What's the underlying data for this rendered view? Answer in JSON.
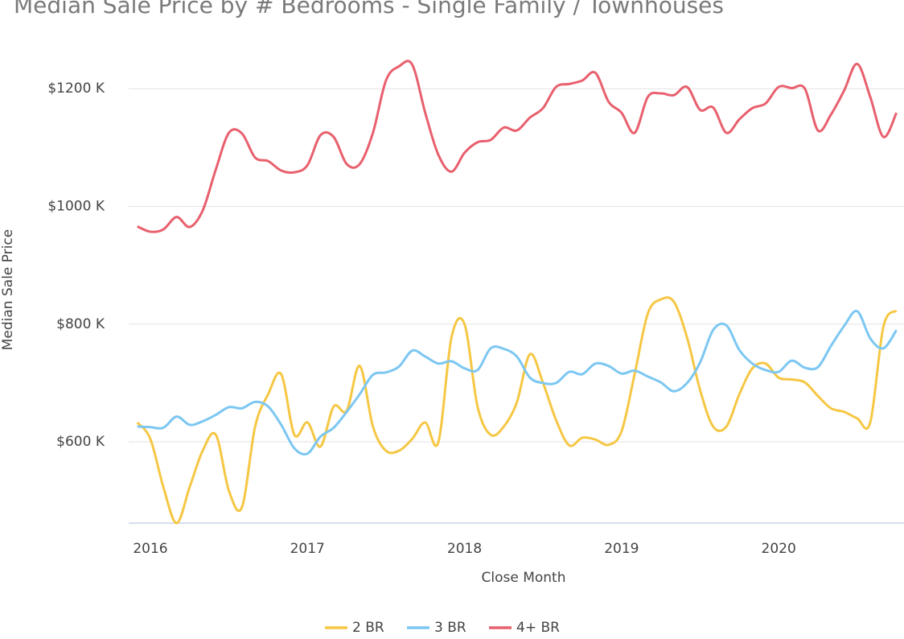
{
  "chart_data": {
    "type": "line",
    "title": "Median Sale Price by # Bedrooms - Single Family / Townhouses",
    "x_label": "Close Month",
    "y_label": "Median Sale Price",
    "x": [
      2015.917,
      2016.0,
      2016.083,
      2016.167,
      2016.25,
      2016.333,
      2016.417,
      2016.5,
      2016.583,
      2016.667,
      2016.75,
      2016.833,
      2016.917,
      2017.0,
      2017.083,
      2017.167,
      2017.25,
      2017.333,
      2017.417,
      2017.5,
      2017.583,
      2017.667,
      2017.75,
      2017.833,
      2017.917,
      2018.0,
      2018.083,
      2018.167,
      2018.25,
      2018.333,
      2018.417,
      2018.5,
      2018.583,
      2018.667,
      2018.75,
      2018.833,
      2018.917,
      2019.0,
      2019.083,
      2019.167,
      2019.25,
      2019.333,
      2019.417,
      2019.5,
      2019.583,
      2019.667,
      2019.75,
      2019.833,
      2019.917,
      2020.0,
      2020.083,
      2020.167,
      2020.25,
      2020.333,
      2020.417,
      2020.5,
      2020.583,
      2020.667,
      2020.75
    ],
    "series": [
      {
        "name": "2 BR",
        "color": "#f6c744",
        "values": [
          633,
          605,
          523,
          462,
          523,
          585,
          612,
          517,
          489,
          626,
          681,
          715,
          612,
          633,
          592,
          660,
          653,
          729,
          626,
          585,
          585,
          605,
          633,
          599,
          777,
          800,
          660,
          612,
          626,
          667,
          749,
          700,
          637,
          594,
          607,
          604,
          595,
          618,
          715,
          818,
          842,
          838,
          777,
          688,
          626,
          626,
          681,
          725,
          733,
          709,
          706,
          701,
          678,
          657,
          651,
          640,
          633,
          796,
          823
        ]
      },
      {
        "name": "3 BR",
        "color": "#7cc7f2",
        "values": [
          626,
          625,
          624,
          643,
          629,
          635,
          646,
          659,
          657,
          668,
          660,
          629,
          589,
          580,
          609,
          624,
          651,
          681,
          714,
          718,
          728,
          755,
          745,
          733,
          737,
          725,
          722,
          759,
          758,
          745,
          709,
          700,
          700,
          719,
          715,
          733,
          729,
          716,
          721,
          711,
          701,
          686,
          700,
          735,
          790,
          798,
          756,
          733,
          722,
          719,
          738,
          726,
          727,
          763,
          797,
          822,
          776,
          759,
          790
        ]
      },
      {
        "name": "4+ BR",
        "color": "#e8606e",
        "values": [
          966,
          957,
          961,
          982,
          965,
          993,
          1063,
          1125,
          1124,
          1083,
          1077,
          1061,
          1058,
          1070,
          1121,
          1118,
          1072,
          1072,
          1125,
          1214,
          1238,
          1241,
          1159,
          1088,
          1059,
          1091,
          1109,
          1113,
          1134,
          1129,
          1151,
          1167,
          1203,
          1208,
          1214,
          1227,
          1178,
          1159,
          1125,
          1186,
          1192,
          1189,
          1203,
          1164,
          1168,
          1125,
          1148,
          1167,
          1175,
          1203,
          1201,
          1200,
          1129,
          1156,
          1197,
          1242,
          1186,
          1118,
          1159
        ]
      }
    ],
    "xlim": [
      2015.862,
      2020.798
    ],
    "xticks": [
      2016,
      2017,
      2018,
      2019,
      2020
    ],
    "ylim": [
      462,
      1270
    ],
    "yticks": [
      {
        "value": 600,
        "label": "$600 K"
      },
      {
        "value": 800,
        "label": "$800 K"
      },
      {
        "value": 1000,
        "label": "$1000 K"
      },
      {
        "value": 1200,
        "label": "$1200 K"
      }
    ],
    "grid": true,
    "legend": "bottom"
  }
}
